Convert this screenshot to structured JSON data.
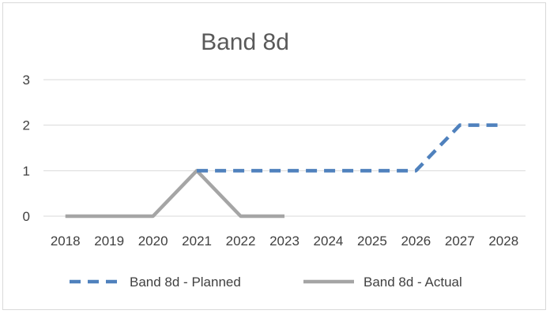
{
  "chart_data": {
    "type": "line",
    "title": "Band 8d",
    "xlabel": "",
    "ylabel": "",
    "categories": [
      "2018",
      "2019",
      "2020",
      "2021",
      "2022",
      "2023",
      "2024",
      "2025",
      "2026",
      "2027",
      "2028"
    ],
    "ylim": [
      0,
      3
    ],
    "yticks": [
      0,
      1,
      2,
      3
    ],
    "grid": "horizontal",
    "legend_position": "bottom",
    "series": [
      {
        "name": "Band 8d - Planned",
        "style": "dashed",
        "color": "#4f81bd",
        "values": [
          null,
          null,
          null,
          1,
          1,
          1,
          1,
          1,
          1,
          2,
          2
        ]
      },
      {
        "name": "Band 8d - Actual",
        "style": "solid",
        "color": "#a5a5a5",
        "values": [
          0,
          0,
          0,
          1,
          0,
          0,
          null,
          null,
          null,
          null,
          null
        ]
      }
    ]
  }
}
